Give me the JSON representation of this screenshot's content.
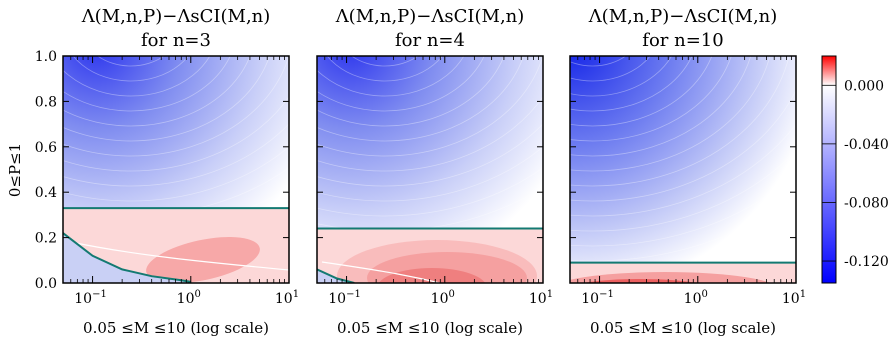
{
  "chart_data": {
    "type": "heatmap",
    "panels": [
      {
        "title_line1": "Λ(M,n,P)−ΛsCI(M,n)",
        "title_line2": "for n=3",
        "n": 3,
        "zero_level_P": 0.33,
        "lower_boundary_curve": [
          [
            0.05,
            0.22
          ],
          [
            0.1,
            0.12
          ],
          [
            0.2,
            0.06
          ],
          [
            0.4,
            0.03
          ],
          [
            0.8,
            0.012
          ],
          [
            1.0,
            0.005
          ]
        ]
      },
      {
        "title_line1": "Λ(M,n,P)−ΛsCI(M,n)",
        "title_line2": "for n=4",
        "n": 4,
        "zero_level_P": 0.24,
        "lower_boundary_curve": [
          [
            0.05,
            0.06
          ],
          [
            0.08,
            0.02
          ],
          [
            0.12,
            0.0
          ]
        ]
      },
      {
        "title_line1": "Λ(M,n,P)−ΛsCI(M,n)",
        "title_line2": "for n=10",
        "n": 10,
        "zero_level_P": 0.09,
        "lower_boundary_curve": []
      }
    ],
    "xlabel": "0.05 ≤M ≤10 (log scale)",
    "ylabel": "0≤P≤1",
    "x_scale": "log",
    "xlim": [
      0.05,
      10
    ],
    "ylim": [
      0,
      1
    ],
    "x_ticks": [
      {
        "value": 0.1,
        "label": "10",
        "sup": "−1"
      },
      {
        "value": 1,
        "label": "10",
        "sup": "0"
      },
      {
        "value": 10,
        "label": "10",
        "sup": "1"
      }
    ],
    "y_ticks": [
      {
        "value": 0.0,
        "label": "0.0"
      },
      {
        "value": 0.2,
        "label": "0.2"
      },
      {
        "value": 0.4,
        "label": "0.4"
      },
      {
        "value": 0.6,
        "label": "0.6"
      },
      {
        "value": 0.8,
        "label": "0.8"
      },
      {
        "value": 1.0,
        "label": "1.0"
      }
    ],
    "colorbar": {
      "range": [
        -0.135,
        0.02
      ],
      "ticks": [
        {
          "value": 0.0,
          "label": "0.000"
        },
        {
          "value": -0.04,
          "label": "-0.040"
        },
        {
          "value": -0.08,
          "label": "-0.080"
        },
        {
          "value": -0.12,
          "label": "-0.120"
        }
      ]
    },
    "colors": {
      "negative": "#0000ff",
      "positive": "#ff0000",
      "neutral": "#ffffff",
      "zero_line": "#137a72",
      "ridge_line": "#ffffff"
    }
  }
}
